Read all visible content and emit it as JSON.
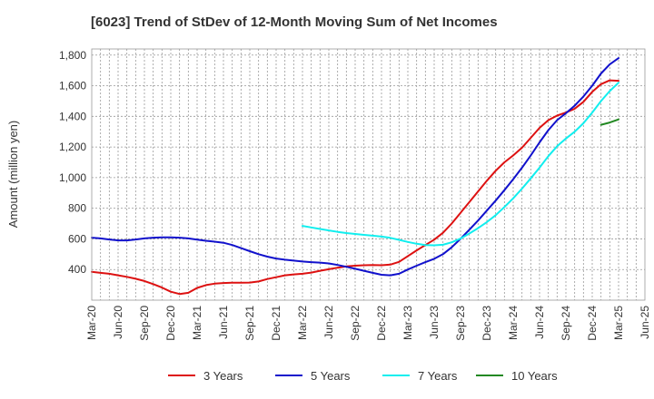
{
  "chart_data": {
    "type": "line",
    "title": "[6023]  Trend of StDev of 12-Month Moving Sum of Net Incomes",
    "ylabel": "Amount (million yen)",
    "xlabel": "",
    "ylim": [
      200,
      1840
    ],
    "yticks": [
      400,
      600,
      800,
      1000,
      1200,
      1400,
      1600,
      1800
    ],
    "ytick_labels": [
      "400",
      "600",
      "800",
      "1,000",
      "1,200",
      "1,400",
      "1,600",
      "1,800"
    ],
    "x_ticks": [
      "Mar-20",
      "Jun-20",
      "Sep-20",
      "Dec-20",
      "Mar-21",
      "Jun-21",
      "Sep-21",
      "Dec-21",
      "Mar-22",
      "Jun-22",
      "Sep-22",
      "Dec-22",
      "Mar-23",
      "Jun-23",
      "Sep-23",
      "Dec-23",
      "Mar-24",
      "Jun-24",
      "Sep-24",
      "Dec-24",
      "Mar-25",
      "Jun-25"
    ],
    "grid": true,
    "legend_position": "bottom",
    "series": [
      {
        "name": "3 Years",
        "color": "#dd1111",
        "points": [
          [
            "Mar-20",
            385
          ],
          [
            "Apr-20",
            378
          ],
          [
            "May-20",
            372
          ],
          [
            "Jun-20",
            362
          ],
          [
            "Jul-20",
            352
          ],
          [
            "Aug-20",
            340
          ],
          [
            "Sep-20",
            325
          ],
          [
            "Oct-20",
            305
          ],
          [
            "Nov-20",
            282
          ],
          [
            "Dec-20",
            255
          ],
          [
            "Jan-21",
            240
          ],
          [
            "Feb-21",
            248
          ],
          [
            "Mar-21",
            280
          ],
          [
            "Apr-21",
            298
          ],
          [
            "May-21",
            308
          ],
          [
            "Jun-21",
            312
          ],
          [
            "Jul-21",
            314
          ],
          [
            "Aug-21",
            314
          ],
          [
            "Sep-21",
            315
          ],
          [
            "Oct-21",
            322
          ],
          [
            "Nov-21",
            338
          ],
          [
            "Dec-21",
            350
          ],
          [
            "Jan-22",
            362
          ],
          [
            "Feb-22",
            368
          ],
          [
            "Mar-22",
            372
          ],
          [
            "Apr-22",
            380
          ],
          [
            "May-22",
            392
          ],
          [
            "Jun-22",
            402
          ],
          [
            "Jul-22",
            412
          ],
          [
            "Aug-22",
            420
          ],
          [
            "Sep-22",
            425
          ],
          [
            "Oct-22",
            428
          ],
          [
            "Nov-22",
            430
          ],
          [
            "Dec-22",
            428
          ],
          [
            "Jan-23",
            432
          ],
          [
            "Feb-23",
            450
          ],
          [
            "Mar-23",
            488
          ],
          [
            "Apr-23",
            525
          ],
          [
            "May-23",
            560
          ],
          [
            "Jun-23",
            595
          ],
          [
            "Jul-23",
            640
          ],
          [
            "Aug-23",
            700
          ],
          [
            "Sep-23",
            770
          ],
          [
            "Oct-23",
            840
          ],
          [
            "Nov-23",
            910
          ],
          [
            "Dec-23",
            980
          ],
          [
            "Jan-24",
            1045
          ],
          [
            "Feb-24",
            1100
          ],
          [
            "Mar-24",
            1145
          ],
          [
            "Apr-24",
            1195
          ],
          [
            "May-24",
            1260
          ],
          [
            "Jun-24",
            1325
          ],
          [
            "Jul-24",
            1375
          ],
          [
            "Aug-24",
            1405
          ],
          [
            "Sep-24",
            1425
          ],
          [
            "Oct-24",
            1450
          ],
          [
            "Nov-24",
            1495
          ],
          [
            "Dec-24",
            1560
          ],
          [
            "Jan-25",
            1610
          ],
          [
            "Feb-25",
            1635
          ],
          [
            "Mar-25",
            1632
          ]
        ]
      },
      {
        "name": "5 Years",
        "color": "#1111cc",
        "points": [
          [
            "Mar-20",
            608
          ],
          [
            "Apr-20",
            603
          ],
          [
            "May-20",
            596
          ],
          [
            "Jun-20",
            590
          ],
          [
            "Jul-20",
            590
          ],
          [
            "Aug-20",
            596
          ],
          [
            "Sep-20",
            603
          ],
          [
            "Oct-20",
            608
          ],
          [
            "Nov-20",
            610
          ],
          [
            "Dec-20",
            610
          ],
          [
            "Jan-21",
            608
          ],
          [
            "Feb-21",
            603
          ],
          [
            "Mar-21",
            595
          ],
          [
            "Apr-21",
            588
          ],
          [
            "May-21",
            582
          ],
          [
            "Jun-21",
            575
          ],
          [
            "Jul-21",
            560
          ],
          [
            "Aug-21",
            540
          ],
          [
            "Sep-21",
            520
          ],
          [
            "Oct-21",
            500
          ],
          [
            "Nov-21",
            484
          ],
          [
            "Dec-21",
            472
          ],
          [
            "Jan-22",
            464
          ],
          [
            "Feb-22",
            458
          ],
          [
            "Mar-22",
            452
          ],
          [
            "Apr-22",
            448
          ],
          [
            "May-22",
            445
          ],
          [
            "Jun-22",
            440
          ],
          [
            "Jul-22",
            430
          ],
          [
            "Aug-22",
            418
          ],
          [
            "Sep-22",
            405
          ],
          [
            "Oct-22",
            392
          ],
          [
            "Nov-22",
            378
          ],
          [
            "Dec-22",
            366
          ],
          [
            "Jan-23",
            362
          ],
          [
            "Feb-23",
            372
          ],
          [
            "Mar-23",
            400
          ],
          [
            "Apr-23",
            425
          ],
          [
            "May-23",
            448
          ],
          [
            "Jun-23",
            470
          ],
          [
            "Jul-23",
            500
          ],
          [
            "Aug-23",
            545
          ],
          [
            "Sep-23",
            600
          ],
          [
            "Oct-23",
            660
          ],
          [
            "Nov-23",
            720
          ],
          [
            "Dec-23",
            785
          ],
          [
            "Jan-24",
            850
          ],
          [
            "Feb-24",
            918
          ],
          [
            "Mar-24",
            990
          ],
          [
            "Apr-24",
            1065
          ],
          [
            "May-24",
            1145
          ],
          [
            "Jun-24",
            1230
          ],
          [
            "Jul-24",
            1310
          ],
          [
            "Aug-24",
            1375
          ],
          [
            "Sep-24",
            1420
          ],
          [
            "Oct-24",
            1470
          ],
          [
            "Nov-24",
            1530
          ],
          [
            "Dec-24",
            1600
          ],
          [
            "Jan-25",
            1680
          ],
          [
            "Feb-25",
            1740
          ],
          [
            "Mar-25",
            1780
          ]
        ]
      },
      {
        "name": "7 Years",
        "color": "#11eeee",
        "points": [
          [
            "Mar-22",
            685
          ],
          [
            "Apr-22",
            675
          ],
          [
            "May-22",
            665
          ],
          [
            "Jun-22",
            655
          ],
          [
            "Jul-22",
            646
          ],
          [
            "Aug-22",
            638
          ],
          [
            "Sep-22",
            632
          ],
          [
            "Oct-22",
            626
          ],
          [
            "Nov-22",
            621
          ],
          [
            "Dec-22",
            615
          ],
          [
            "Jan-23",
            607
          ],
          [
            "Feb-23",
            594
          ],
          [
            "Mar-23",
            580
          ],
          [
            "Apr-23",
            568
          ],
          [
            "May-23",
            560
          ],
          [
            "Jun-23",
            558
          ],
          [
            "Jul-23",
            562
          ],
          [
            "Aug-23",
            578
          ],
          [
            "Sep-23",
            602
          ],
          [
            "Oct-23",
            635
          ],
          [
            "Nov-23",
            670
          ],
          [
            "Dec-23",
            710
          ],
          [
            "Jan-24",
            755
          ],
          [
            "Feb-24",
            808
          ],
          [
            "Mar-24",
            865
          ],
          [
            "Apr-24",
            928
          ],
          [
            "May-24",
            995
          ],
          [
            "Jun-24",
            1065
          ],
          [
            "Jul-24",
            1140
          ],
          [
            "Aug-24",
            1205
          ],
          [
            "Sep-24",
            1255
          ],
          [
            "Oct-24",
            1300
          ],
          [
            "Nov-24",
            1355
          ],
          [
            "Dec-24",
            1425
          ],
          [
            "Jan-25",
            1500
          ],
          [
            "Feb-25",
            1565
          ],
          [
            "Mar-25",
            1620
          ]
        ]
      },
      {
        "name": "10 Years",
        "color": "#228822",
        "points": [
          [
            "Jan-25",
            1345
          ],
          [
            "Feb-25",
            1360
          ],
          [
            "Mar-25",
            1380
          ]
        ]
      }
    ]
  }
}
